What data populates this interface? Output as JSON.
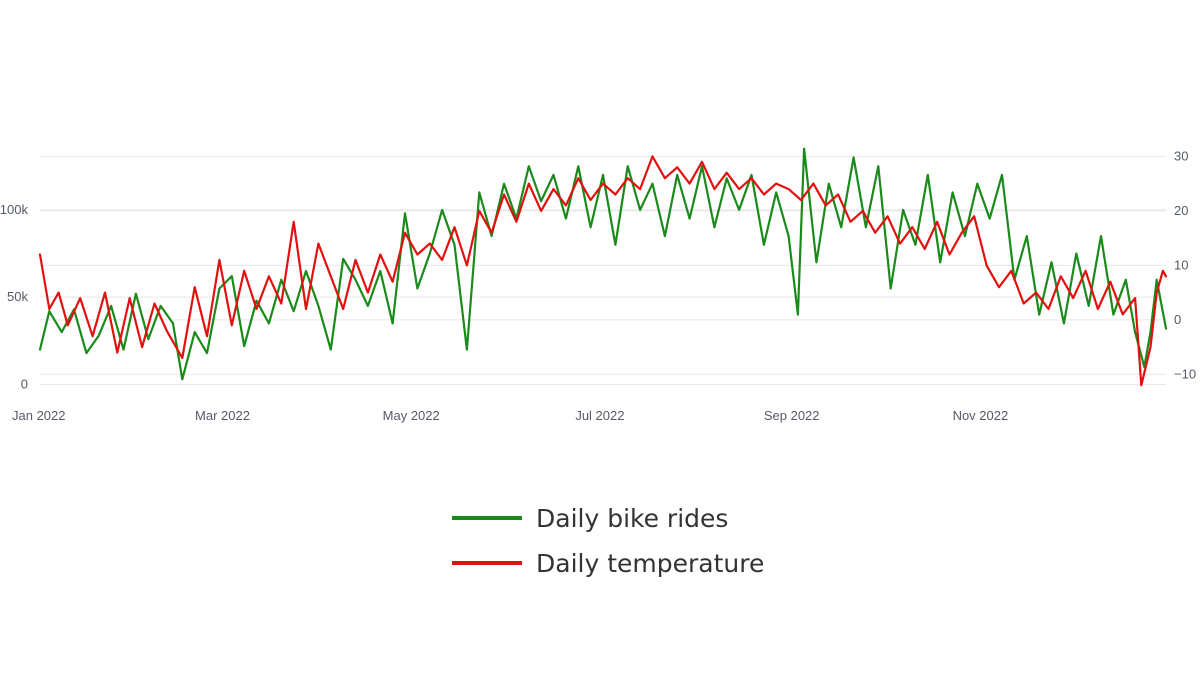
{
  "chart_data": {
    "type": "line",
    "title": "",
    "xlabel": "",
    "ylabel": "",
    "y2label": "",
    "x_range": [
      "2022-01-01",
      "2022-12-31"
    ],
    "x_ticks": [
      {
        "date": "2022-01-01",
        "label": "Jan 2022"
      },
      {
        "date": "2022-03-01",
        "label": "Mar 2022"
      },
      {
        "date": "2022-05-01",
        "label": "May 2022"
      },
      {
        "date": "2022-07-01",
        "label": "Jul 2022"
      },
      {
        "date": "2022-09-01",
        "label": "Sep 2022"
      },
      {
        "date": "2022-11-01",
        "label": "Nov 2022"
      }
    ],
    "y_left": {
      "range": [
        -2000,
        140000
      ],
      "ticks": [
        {
          "value": 0,
          "label": "0"
        },
        {
          "value": 50000,
          "label": "50k"
        },
        {
          "value": 100000,
          "label": "100k"
        }
      ]
    },
    "y_right": {
      "range": [
        -12.5,
        33
      ],
      "ticks": [
        {
          "value": -10,
          "label": "−10"
        },
        {
          "value": 0,
          "label": "0"
        },
        {
          "value": 10,
          "label": "10"
        },
        {
          "value": 20,
          "label": "20"
        },
        {
          "value": 30,
          "label": "30"
        }
      ]
    },
    "grid": true,
    "legend": "bottom-center",
    "series": [
      {
        "name": "Daily bike rides",
        "axis": "left",
        "color": "#1a8a1a",
        "points": [
          [
            "2022-01-01",
            20000
          ],
          [
            "2022-01-04",
            42000
          ],
          [
            "2022-01-08",
            30000
          ],
          [
            "2022-01-12",
            43000
          ],
          [
            "2022-01-16",
            18000
          ],
          [
            "2022-01-20",
            28000
          ],
          [
            "2022-01-24",
            45000
          ],
          [
            "2022-01-28",
            20000
          ],
          [
            "2022-02-01",
            52000
          ],
          [
            "2022-02-05",
            26000
          ],
          [
            "2022-02-09",
            45000
          ],
          [
            "2022-02-13",
            35000
          ],
          [
            "2022-02-16",
            3000
          ],
          [
            "2022-02-20",
            30000
          ],
          [
            "2022-02-24",
            18000
          ],
          [
            "2022-02-28",
            55000
          ],
          [
            "2022-03-04",
            62000
          ],
          [
            "2022-03-08",
            22000
          ],
          [
            "2022-03-12",
            48000
          ],
          [
            "2022-03-16",
            35000
          ],
          [
            "2022-03-20",
            60000
          ],
          [
            "2022-03-24",
            42000
          ],
          [
            "2022-03-28",
            65000
          ],
          [
            "2022-04-01",
            45000
          ],
          [
            "2022-04-05",
            20000
          ],
          [
            "2022-04-09",
            72000
          ],
          [
            "2022-04-13",
            60000
          ],
          [
            "2022-04-17",
            45000
          ],
          [
            "2022-04-21",
            65000
          ],
          [
            "2022-04-25",
            35000
          ],
          [
            "2022-04-29",
            98000
          ],
          [
            "2022-05-03",
            55000
          ],
          [
            "2022-05-07",
            75000
          ],
          [
            "2022-05-11",
            100000
          ],
          [
            "2022-05-15",
            80000
          ],
          [
            "2022-05-19",
            20000
          ],
          [
            "2022-05-23",
            110000
          ],
          [
            "2022-05-27",
            85000
          ],
          [
            "2022-05-31",
            115000
          ],
          [
            "2022-06-04",
            95000
          ],
          [
            "2022-06-08",
            125000
          ],
          [
            "2022-06-12",
            105000
          ],
          [
            "2022-06-16",
            120000
          ],
          [
            "2022-06-20",
            95000
          ],
          [
            "2022-06-24",
            125000
          ],
          [
            "2022-06-28",
            90000
          ],
          [
            "2022-07-02",
            120000
          ],
          [
            "2022-07-06",
            80000
          ],
          [
            "2022-07-10",
            125000
          ],
          [
            "2022-07-14",
            100000
          ],
          [
            "2022-07-18",
            115000
          ],
          [
            "2022-07-22",
            85000
          ],
          [
            "2022-07-26",
            120000
          ],
          [
            "2022-07-30",
            95000
          ],
          [
            "2022-08-03",
            125000
          ],
          [
            "2022-08-07",
            90000
          ],
          [
            "2022-08-11",
            118000
          ],
          [
            "2022-08-15",
            100000
          ],
          [
            "2022-08-19",
            120000
          ],
          [
            "2022-08-23",
            80000
          ],
          [
            "2022-08-27",
            110000
          ],
          [
            "2022-08-31",
            85000
          ],
          [
            "2022-09-03",
            40000
          ],
          [
            "2022-09-05",
            135000
          ],
          [
            "2022-09-09",
            70000
          ],
          [
            "2022-09-13",
            115000
          ],
          [
            "2022-09-17",
            90000
          ],
          [
            "2022-09-21",
            130000
          ],
          [
            "2022-09-25",
            90000
          ],
          [
            "2022-09-29",
            125000
          ],
          [
            "2022-10-03",
            55000
          ],
          [
            "2022-10-07",
            100000
          ],
          [
            "2022-10-11",
            80000
          ],
          [
            "2022-10-15",
            120000
          ],
          [
            "2022-10-19",
            70000
          ],
          [
            "2022-10-23",
            110000
          ],
          [
            "2022-10-27",
            85000
          ],
          [
            "2022-10-31",
            115000
          ],
          [
            "2022-11-04",
            95000
          ],
          [
            "2022-11-08",
            120000
          ],
          [
            "2022-11-12",
            60000
          ],
          [
            "2022-11-16",
            85000
          ],
          [
            "2022-11-20",
            40000
          ],
          [
            "2022-11-24",
            70000
          ],
          [
            "2022-11-28",
            35000
          ],
          [
            "2022-12-02",
            75000
          ],
          [
            "2022-12-06",
            45000
          ],
          [
            "2022-12-10",
            85000
          ],
          [
            "2022-12-14",
            40000
          ],
          [
            "2022-12-18",
            60000
          ],
          [
            "2022-12-21",
            30000
          ],
          [
            "2022-12-24",
            10000
          ],
          [
            "2022-12-26",
            30000
          ],
          [
            "2022-12-28",
            60000
          ],
          [
            "2022-12-31",
            32000
          ]
        ]
      },
      {
        "name": "Daily temperature",
        "axis": "right",
        "color": "#e31010",
        "points": [
          [
            "2022-01-01",
            12
          ],
          [
            "2022-01-04",
            2
          ],
          [
            "2022-01-07",
            5
          ],
          [
            "2022-01-10",
            -1
          ],
          [
            "2022-01-14",
            4
          ],
          [
            "2022-01-18",
            -3
          ],
          [
            "2022-01-22",
            5
          ],
          [
            "2022-01-26",
            -6
          ],
          [
            "2022-01-30",
            4
          ],
          [
            "2022-02-03",
            -5
          ],
          [
            "2022-02-07",
            3
          ],
          [
            "2022-02-11",
            -2
          ],
          [
            "2022-02-16",
            -7
          ],
          [
            "2022-02-20",
            6
          ],
          [
            "2022-02-24",
            -3
          ],
          [
            "2022-02-28",
            11
          ],
          [
            "2022-03-04",
            -1
          ],
          [
            "2022-03-08",
            9
          ],
          [
            "2022-03-12",
            2
          ],
          [
            "2022-03-16",
            8
          ],
          [
            "2022-03-20",
            3
          ],
          [
            "2022-03-24",
            18
          ],
          [
            "2022-03-28",
            2
          ],
          [
            "2022-04-01",
            14
          ],
          [
            "2022-04-05",
            8
          ],
          [
            "2022-04-09",
            2
          ],
          [
            "2022-04-13",
            11
          ],
          [
            "2022-04-17",
            5
          ],
          [
            "2022-04-21",
            12
          ],
          [
            "2022-04-25",
            7
          ],
          [
            "2022-04-29",
            16
          ],
          [
            "2022-05-03",
            12
          ],
          [
            "2022-05-07",
            14
          ],
          [
            "2022-05-11",
            11
          ],
          [
            "2022-05-15",
            17
          ],
          [
            "2022-05-19",
            10
          ],
          [
            "2022-05-23",
            20
          ],
          [
            "2022-05-27",
            16
          ],
          [
            "2022-05-31",
            23
          ],
          [
            "2022-06-04",
            18
          ],
          [
            "2022-06-08",
            25
          ],
          [
            "2022-06-12",
            20
          ],
          [
            "2022-06-16",
            24
          ],
          [
            "2022-06-20",
            21
          ],
          [
            "2022-06-24",
            26
          ],
          [
            "2022-06-28",
            22
          ],
          [
            "2022-07-02",
            25
          ],
          [
            "2022-07-06",
            23
          ],
          [
            "2022-07-10",
            26
          ],
          [
            "2022-07-14",
            24
          ],
          [
            "2022-07-18",
            30
          ],
          [
            "2022-07-22",
            26
          ],
          [
            "2022-07-26",
            28
          ],
          [
            "2022-07-30",
            25
          ],
          [
            "2022-08-03",
            29
          ],
          [
            "2022-08-07",
            24
          ],
          [
            "2022-08-11",
            27
          ],
          [
            "2022-08-15",
            24
          ],
          [
            "2022-08-19",
            26
          ],
          [
            "2022-08-23",
            23
          ],
          [
            "2022-08-27",
            25
          ],
          [
            "2022-08-31",
            24
          ],
          [
            "2022-09-04",
            22
          ],
          [
            "2022-09-08",
            25
          ],
          [
            "2022-09-12",
            21
          ],
          [
            "2022-09-16",
            23
          ],
          [
            "2022-09-20",
            18
          ],
          [
            "2022-09-24",
            20
          ],
          [
            "2022-09-28",
            16
          ],
          [
            "2022-10-02",
            19
          ],
          [
            "2022-10-06",
            14
          ],
          [
            "2022-10-10",
            17
          ],
          [
            "2022-10-14",
            13
          ],
          [
            "2022-10-18",
            18
          ],
          [
            "2022-10-22",
            12
          ],
          [
            "2022-10-26",
            16
          ],
          [
            "2022-10-30",
            19
          ],
          [
            "2022-11-03",
            10
          ],
          [
            "2022-11-07",
            6
          ],
          [
            "2022-11-11",
            9
          ],
          [
            "2022-11-15",
            3
          ],
          [
            "2022-11-19",
            5
          ],
          [
            "2022-11-23",
            2
          ],
          [
            "2022-11-27",
            8
          ],
          [
            "2022-12-01",
            4
          ],
          [
            "2022-12-05",
            9
          ],
          [
            "2022-12-09",
            2
          ],
          [
            "2022-12-13",
            7
          ],
          [
            "2022-12-17",
            1
          ],
          [
            "2022-12-21",
            4
          ],
          [
            "2022-12-23",
            -12
          ],
          [
            "2022-12-26",
            -5
          ],
          [
            "2022-12-28",
            5
          ],
          [
            "2022-12-30",
            9
          ],
          [
            "2022-12-31",
            8
          ]
        ]
      }
    ]
  }
}
